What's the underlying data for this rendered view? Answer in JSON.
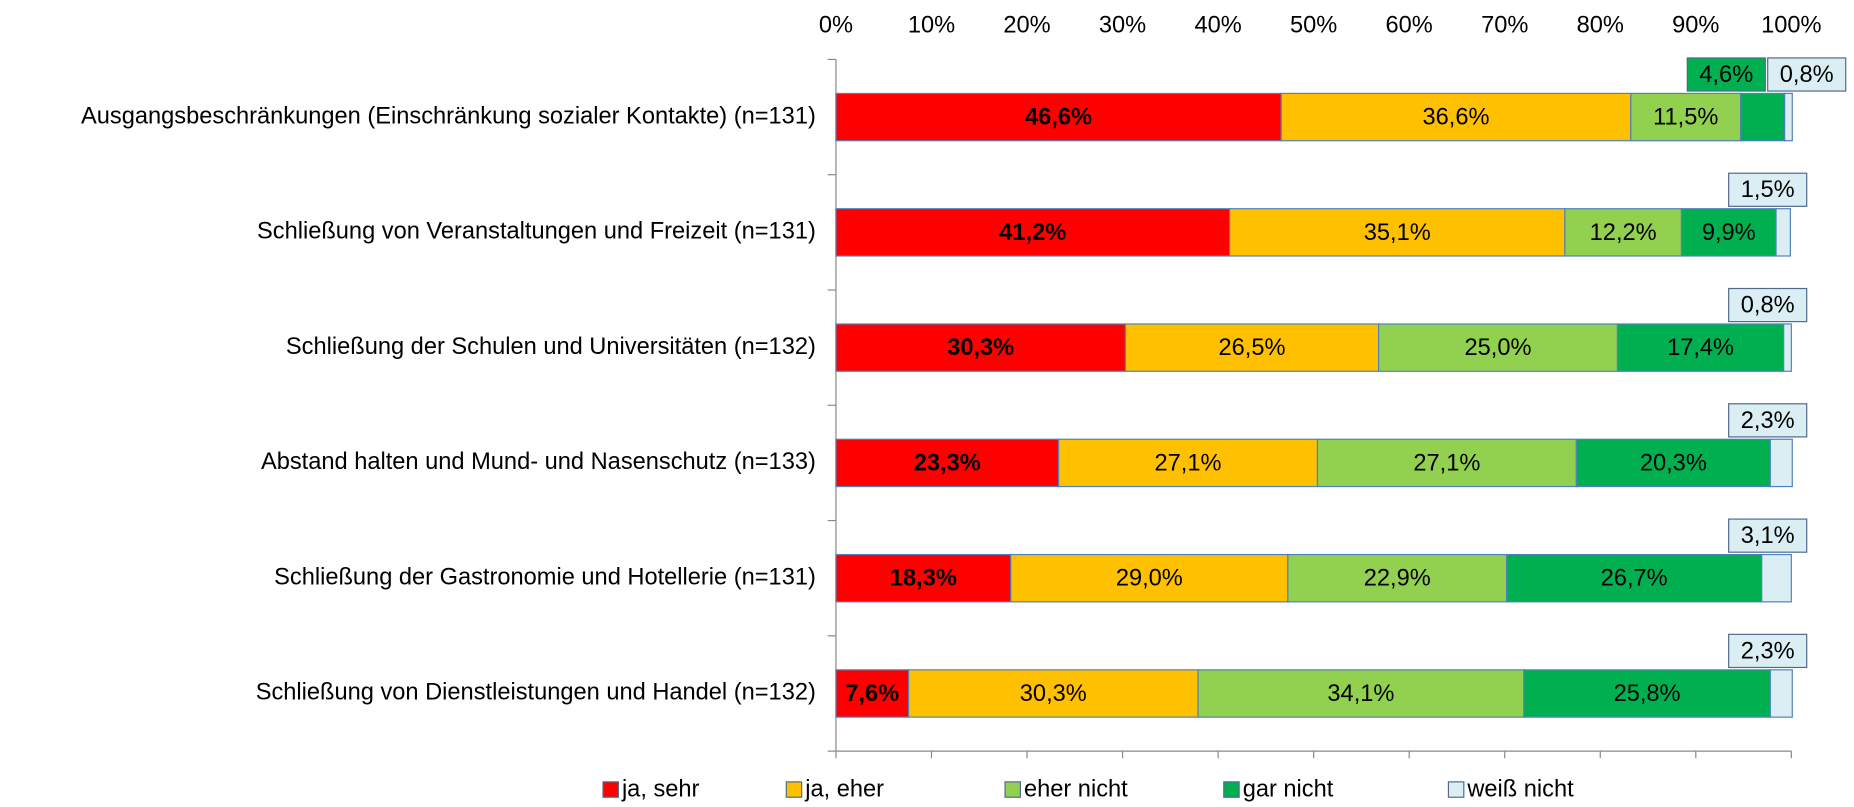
{
  "chart_data": {
    "type": "stacked-bar-horizontal",
    "categories": [
      "Ausgangsbeschränkungen (Einschränkung sozialer Kontakte) (n=131)",
      "Schließung von Veranstaltungen und Freizeit (n=131)",
      "Schließung der Schulen und Universitäten (n=132)",
      "Abstand halten und Mund- und Nasenschutz (n=133)",
      "Schließung der Gastronomie und Hotellerie (n=131)",
      "Schließung von Dienstleistungen und Handel (n=132)"
    ],
    "series": [
      {
        "name": "ja, sehr",
        "color": "#ff0000",
        "values": [
          46.6,
          41.2,
          30.3,
          23.3,
          18.3,
          7.6
        ],
        "value_labels": [
          "46,6%",
          "41,2%",
          "30,3%",
          "23,3%",
          "18,3%",
          "7,6%"
        ]
      },
      {
        "name": "ja, eher",
        "color": "#ffc000",
        "values": [
          36.6,
          35.1,
          26.5,
          27.1,
          29.0,
          30.3
        ],
        "value_labels": [
          "36,6%",
          "35,1%",
          "26,5%",
          "27,1%",
          "29,0%",
          "30,3%"
        ]
      },
      {
        "name": "eher nicht",
        "color": "#92d050",
        "values": [
          11.5,
          12.2,
          25.0,
          27.1,
          22.9,
          34.1
        ],
        "value_labels": [
          "11,5%",
          "12,2%",
          "25,0%",
          "27,1%",
          "22,9%",
          "34,1%"
        ]
      },
      {
        "name": "gar nicht",
        "color": "#00b050",
        "values": [
          4.6,
          9.9,
          17.4,
          20.3,
          26.7,
          25.8
        ],
        "value_labels": [
          "4,6%",
          "9,9%",
          "17,4%",
          "20,3%",
          "26,7%",
          "25,8%"
        ]
      },
      {
        "name": "weiß nicht",
        "color": "#dbeef4",
        "values": [
          0.8,
          1.5,
          0.8,
          2.3,
          3.1,
          2.3
        ],
        "value_labels": [
          "0,8%",
          "1,5%",
          "0,8%",
          "2,3%",
          "3,1%",
          "2,3%"
        ]
      }
    ],
    "xlim": [
      0,
      100
    ],
    "xticks": [
      {
        "value": 0,
        "label": "0%"
      },
      {
        "value": 10,
        "label": "10%"
      },
      {
        "value": 20,
        "label": "20%"
      },
      {
        "value": 30,
        "label": "30%"
      },
      {
        "value": 40,
        "label": "40%"
      },
      {
        "value": 50,
        "label": "50%"
      },
      {
        "value": 60,
        "label": "60%"
      },
      {
        "value": 70,
        "label": "70%"
      },
      {
        "value": 80,
        "label": "80%"
      },
      {
        "value": 90,
        "label": "90%"
      },
      {
        "value": 100,
        "label": "100%"
      }
    ],
    "legend": "bottom"
  }
}
